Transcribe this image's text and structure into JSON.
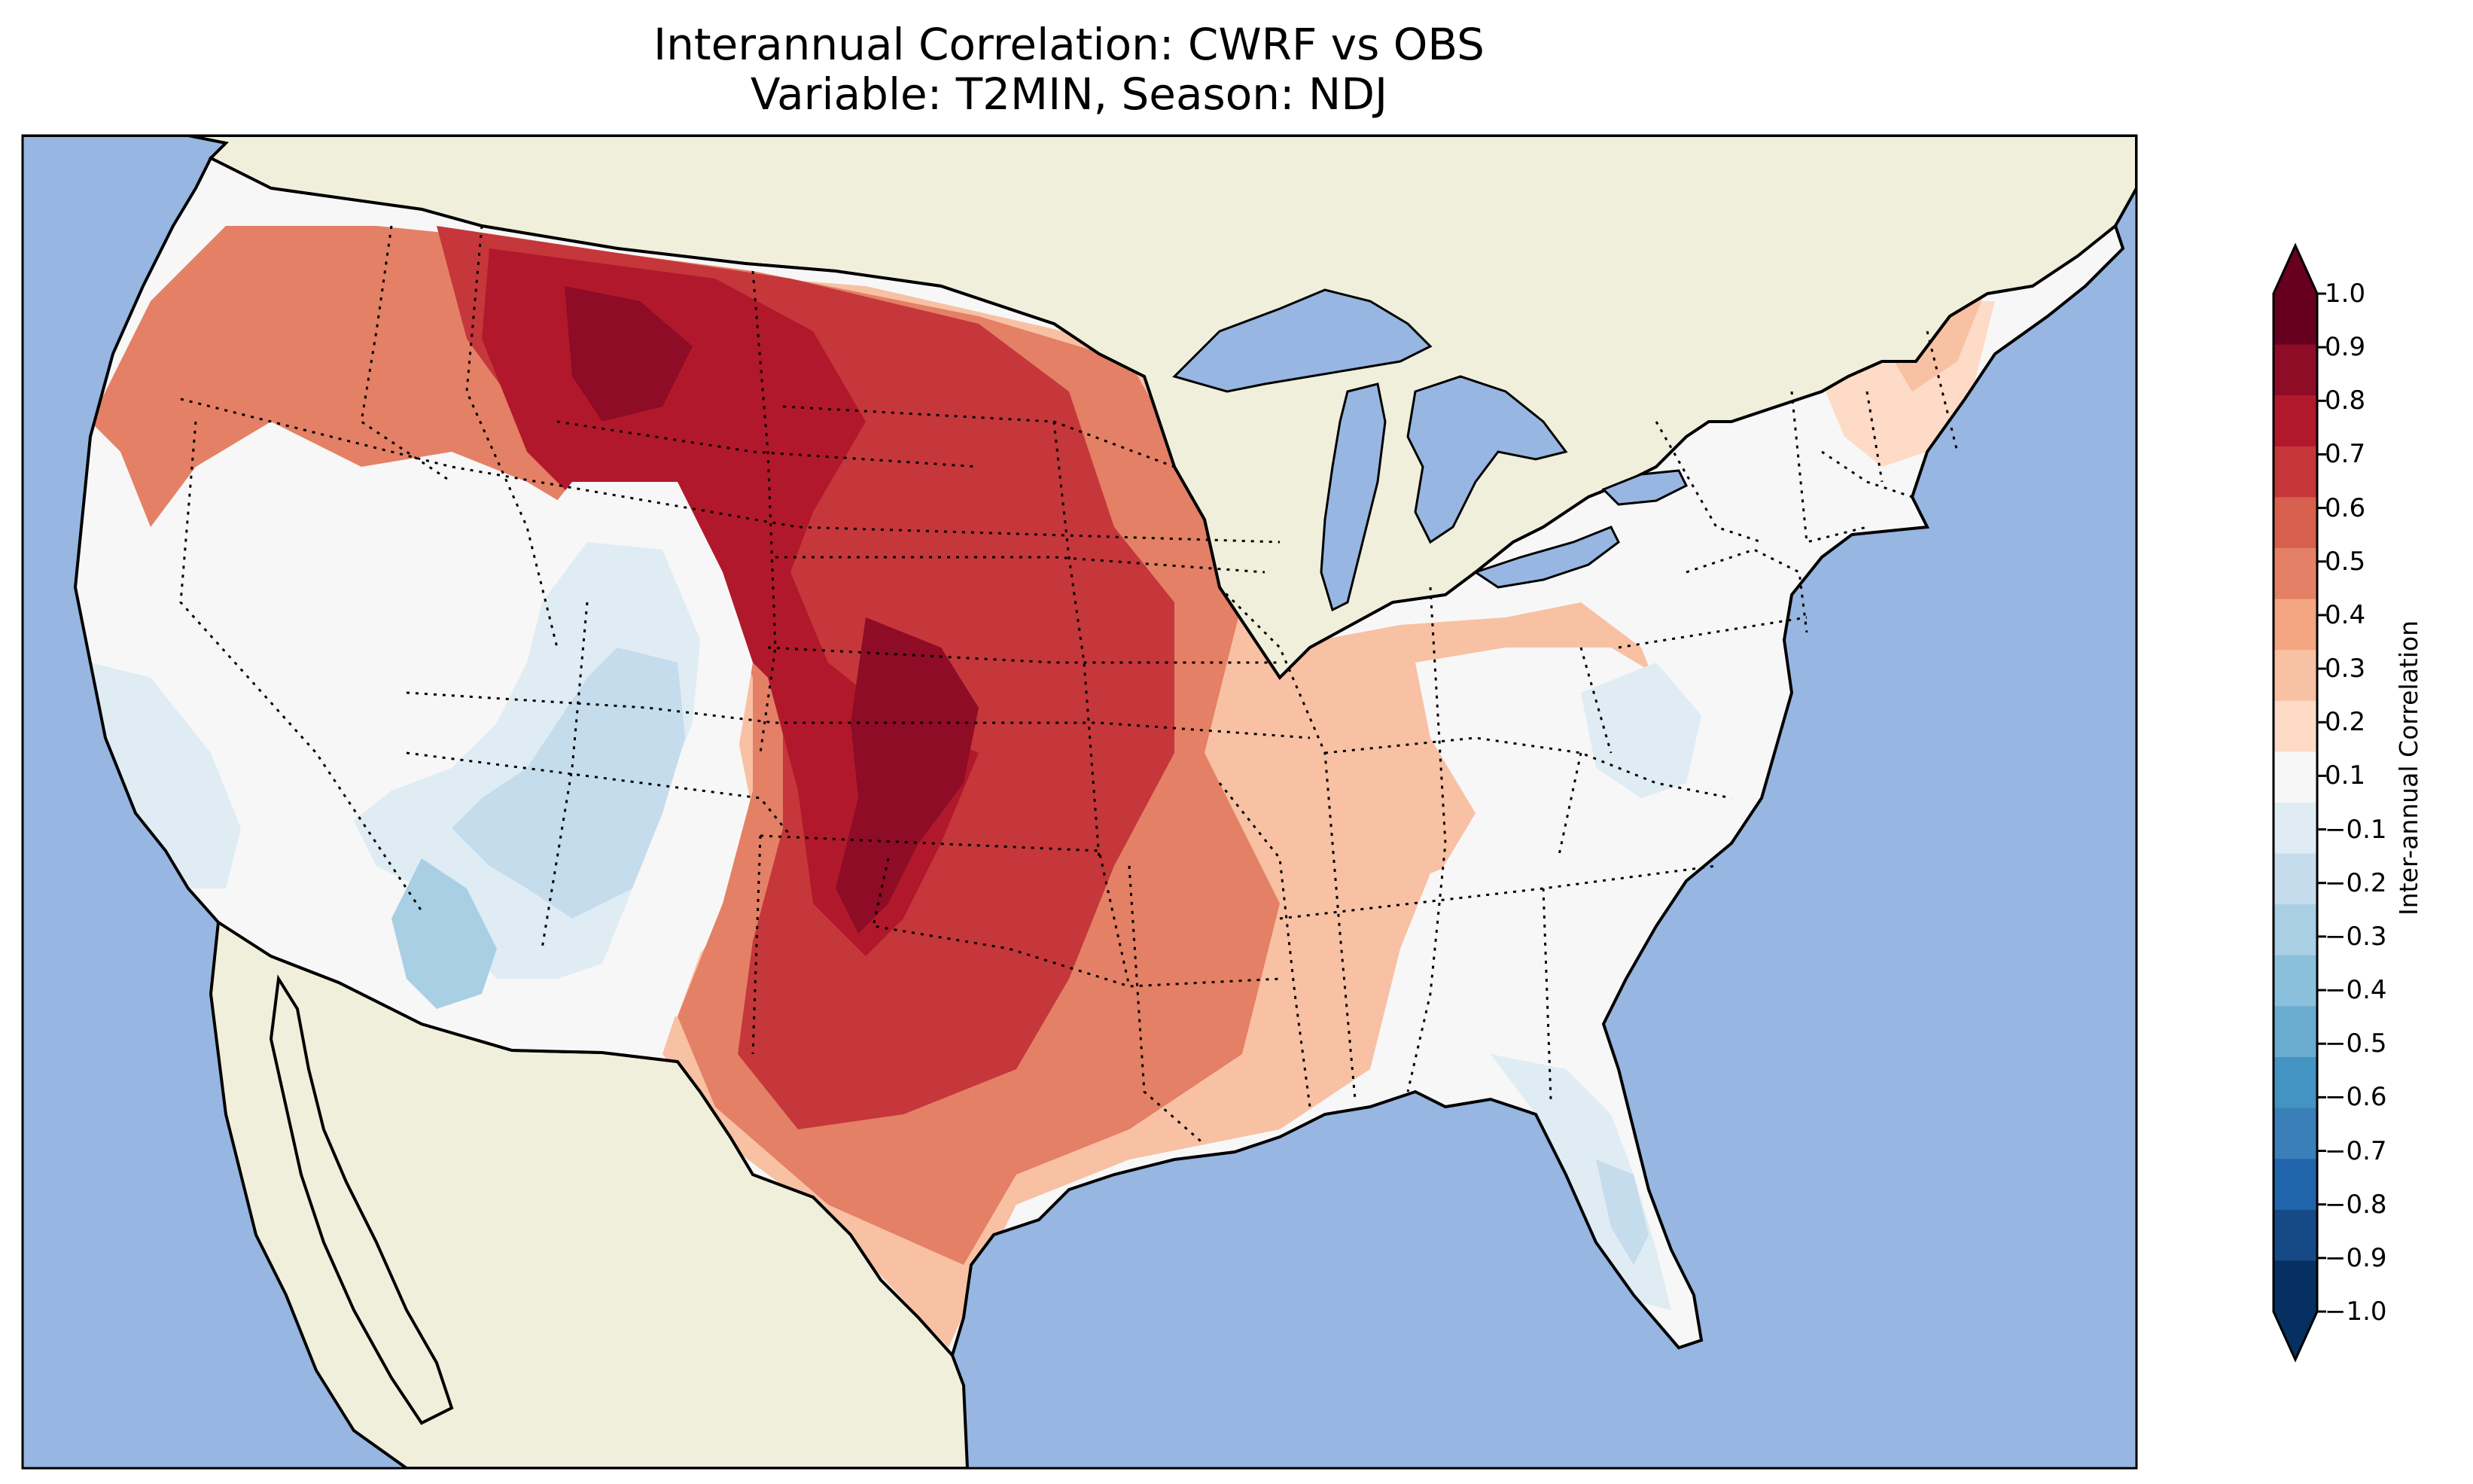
{
  "title_line1": "Interannual Correlation: CWRF vs OBS",
  "title_line2": "Variable: T2MIN, Season: NDJ",
  "colorbar": {
    "label": "Inter-annual Correlation",
    "ticks": [
      "1.0",
      "0.9",
      "0.8",
      "0.7",
      "0.6",
      "0.5",
      "0.4",
      "0.3",
      "0.2",
      "0.1",
      "−0.1",
      "−0.2",
      "−0.3",
      "−0.4",
      "−0.5",
      "−0.6",
      "−0.7",
      "−0.8",
      "−0.9",
      "−1.0"
    ],
    "levels": [
      1.0,
      0.9,
      0.8,
      0.7,
      0.6,
      0.5,
      0.4,
      0.3,
      0.2,
      0.1,
      -0.1,
      -0.2,
      -0.3,
      -0.4,
      -0.5,
      -0.6,
      -0.7,
      -0.8,
      -0.9,
      -1.0
    ],
    "colors": [
      "#67001f",
      "#8e0c25",
      "#b2182b",
      "#c5373a",
      "#d6604d",
      "#e48066",
      "#f4a582",
      "#f8c1a4",
      "#fddbc7",
      "#f7f7f7",
      "#dfecf4",
      "#c5dcec",
      "#a9cfe5",
      "#8ac0db",
      "#6aacd0",
      "#4393c3",
      "#3a7fb8",
      "#2166ac",
      "#154a86",
      "#053061"
    ],
    "extend": "both"
  },
  "map": {
    "ocean_color": "#97b6e1",
    "land_color": "#efefdb",
    "lake_color": "#97b6e1"
  }
}
